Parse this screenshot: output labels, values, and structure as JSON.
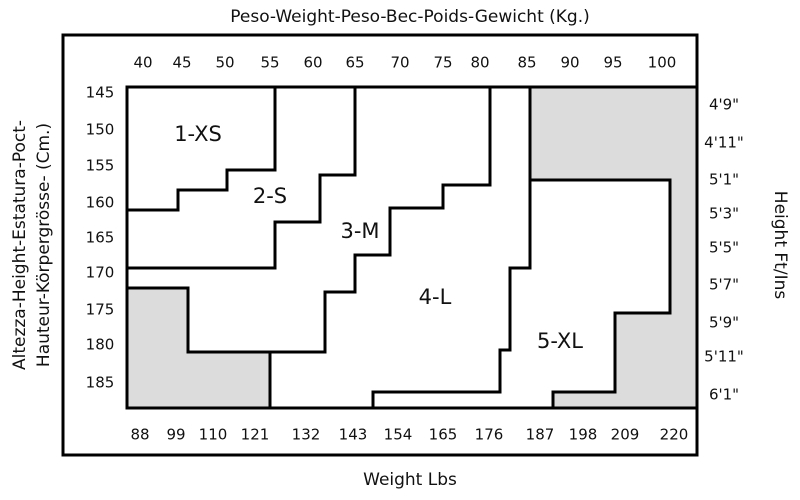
{
  "header": {
    "title": "Peso-Weight-Peso-Bec-Poids-Gewicht (Kg.)"
  },
  "footer": {
    "title": "Weight Lbs"
  },
  "left_axis": {
    "title_lines": [
      "Altezza-Height-Estatura-Poct-",
      "Hauteur-Körpergrösse- (Cm.)"
    ],
    "labels": [
      "145",
      "150",
      "155",
      "160",
      "165",
      "170",
      "175",
      "180",
      "185"
    ]
  },
  "right_axis": {
    "title": "Height Ft/Ins",
    "labels": [
      "4'9\"",
      "4'11\"",
      "5'1\"",
      "5'3\"",
      "5'5\"",
      "5'7\"",
      "5'9\"",
      "5'11\"",
      "6'1\""
    ]
  },
  "kg_labels": [
    "40",
    "45",
    "50",
    "55",
    "60",
    "65",
    "70",
    "75",
    "80",
    "85",
    "90",
    "95",
    "100"
  ],
  "lbs_labels": [
    "88",
    "99",
    "110",
    "121",
    "132",
    "143",
    "154",
    "165",
    "176",
    "187",
    "198",
    "209",
    "220"
  ],
  "sizes": [
    "1-XS",
    "2-S",
    "3-M",
    "4-L",
    "5-XL"
  ]
}
